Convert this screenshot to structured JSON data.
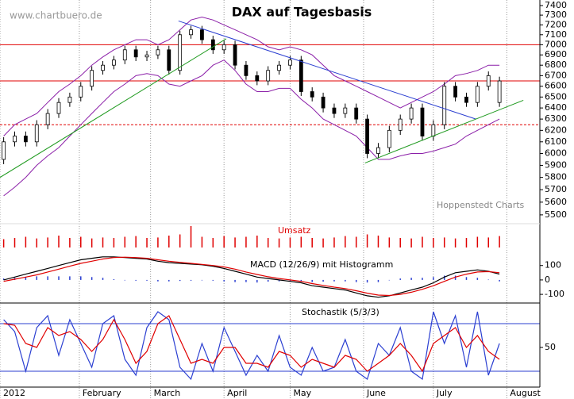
{
  "chart_data": [
    {
      "type": "candlestick",
      "title": "DAX auf Tagesbasis",
      "source": "www.chartbuero.de",
      "credit": "Hoppenstedt Charts",
      "x": [
        1,
        4,
        7,
        10,
        13,
        16,
        19,
        22,
        25,
        28,
        31,
        34,
        37,
        40,
        43,
        46,
        49,
        52,
        55,
        58,
        61,
        64,
        67,
        70,
        73,
        76,
        79,
        82,
        85,
        88,
        91,
        94,
        97,
        100,
        103,
        106,
        109,
        112,
        115,
        118,
        121,
        124,
        127,
        130,
        133,
        136
      ],
      "open": [
        5950,
        6100,
        6150,
        6100,
        6250,
        6350,
        6450,
        6500,
        6600,
        6750,
        6800,
        6850,
        6950,
        6880,
        6900,
        6950,
        6750,
        7100,
        7150,
        7050,
        6950,
        7000,
        6800,
        6700,
        6650,
        6750,
        6800,
        6850,
        6550,
        6500,
        6400,
        6350,
        6400,
        6300,
        6000,
        6050,
        6200,
        6300,
        6400,
        6150,
        6250,
        6600,
        6500,
        6450,
        6600,
        6450
      ],
      "high": [
        6140,
        6190,
        6190,
        6290,
        6390,
        6490,
        6540,
        6640,
        6790,
        6840,
        6890,
        6990,
        6990,
        6940,
        6990,
        6990,
        7140,
        7190,
        7190,
        7090,
        7040,
        7040,
        6840,
        6740,
        6790,
        6840,
        6890,
        6890,
        6590,
        6540,
        6440,
        6440,
        6440,
        6340,
        6090,
        6240,
        6340,
        6440,
        6440,
        6290,
        6640,
        6640,
        6540,
        6640,
        6740,
        6690
      ],
      "low": [
        5910,
        6060,
        6060,
        6060,
        6210,
        6310,
        6410,
        6460,
        6560,
        6710,
        6760,
        6810,
        6840,
        6840,
        6860,
        6710,
        6710,
        7060,
        7010,
        6910,
        6910,
        6760,
        6660,
        6610,
        6610,
        6710,
        6760,
        6510,
        6460,
        6360,
        6310,
        6310,
        6260,
        5960,
        5960,
        6010,
        6160,
        6260,
        6110,
        6110,
        6210,
        6460,
        6410,
        6410,
        6560,
        6410
      ],
      "close": [
        6100,
        6150,
        6100,
        6250,
        6350,
        6450,
        6500,
        6600,
        6750,
        6800,
        6850,
        6950,
        6880,
        6900,
        6950,
        6750,
        7100,
        7150,
        7050,
        6950,
        7000,
        6800,
        6700,
        6650,
        6750,
        6800,
        6850,
        6550,
        6500,
        6400,
        6350,
        6400,
        6300,
        6000,
        6050,
        6200,
        6300,
        6400,
        6150,
        6250,
        6600,
        6500,
        6450,
        6600,
        6700,
        6650
      ],
      "up_color": "#ffffff",
      "down_color": "#000000",
      "bands": [
        {
          "color": "#8b1fa8",
          "values": [
            6150,
            6250,
            6300,
            6350,
            6450,
            6550,
            6620,
            6700,
            6800,
            6880,
            6950,
            7000,
            7050,
            7050,
            7000,
            7050,
            7150,
            7250,
            7280,
            7250,
            7200,
            7150,
            7100,
            7050,
            6980,
            6950,
            6980,
            6950,
            6900,
            6800,
            6700,
            6650,
            6600,
            6550,
            6500,
            6450,
            6400,
            6450,
            6500,
            6550,
            6620,
            6700,
            6720,
            6750,
            6800,
            6800
          ]
        },
        {
          "color": "#8b1fa8",
          "values": [
            5650,
            5720,
            5800,
            5900,
            5980,
            6050,
            6150,
            6250,
            6350,
            6450,
            6550,
            6620,
            6700,
            6720,
            6700,
            6620,
            6600,
            6650,
            6700,
            6800,
            6850,
            6750,
            6620,
            6550,
            6550,
            6580,
            6580,
            6480,
            6400,
            6300,
            6250,
            6200,
            6150,
            6050,
            5950,
            5950,
            5980,
            6000,
            6000,
            6020,
            6050,
            6080,
            6150,
            6200,
            6250,
            6300
          ]
        }
      ],
      "hlines": [
        {
          "value": 7000,
          "color": "#e00000"
        },
        {
          "value": 6650,
          "color": "#e00000"
        },
        {
          "value": 6250,
          "color": "#e00000",
          "dashed": true
        }
      ],
      "trendlines": [
        {
          "color": "#2b3fd1",
          "x": [
            48.6,
            129.6
          ],
          "y": [
            7240,
            6300
          ]
        },
        {
          "color": "#1f9a1f",
          "x": [
            0,
            61.6
          ],
          "y": [
            5800,
            7060
          ]
        },
        {
          "color": "#1f9a1f",
          "x": [
            99.4,
            142.5
          ],
          "y": [
            5920,
            6470
          ]
        }
      ],
      "log_scale": true,
      "xlim": [
        0,
        147
      ],
      "ylim": [
        5450,
        7450
      ],
      "yticks": [
        5500,
        5600,
        5700,
        5800,
        5900,
        6000,
        6100,
        6200,
        6300,
        6400,
        6500,
        6600,
        6700,
        6800,
        6900,
        7000,
        7100,
        7200,
        7300,
        7400
      ]
    },
    {
      "type": "bar",
      "title": "Umsatz",
      "color": "#e00000",
      "x": [
        1,
        4,
        7,
        10,
        13,
        16,
        19,
        22,
        25,
        28,
        31,
        34,
        37,
        40,
        43,
        46,
        49,
        52,
        55,
        58,
        61,
        64,
        67,
        70,
        73,
        76,
        79,
        82,
        85,
        88,
        91,
        94,
        97,
        100,
        103,
        106,
        109,
        112,
        115,
        118,
        121,
        124,
        127,
        130,
        133,
        136
      ],
      "values": [
        35,
        40,
        45,
        38,
        42,
        50,
        40,
        45,
        38,
        42,
        40,
        45,
        48,
        40,
        42,
        50,
        55,
        90,
        45,
        40,
        48,
        42,
        45,
        50,
        40,
        38,
        42,
        45,
        40,
        38,
        42,
        48,
        45,
        55,
        50,
        42,
        40,
        38,
        45,
        40,
        42,
        38,
        40,
        45,
        42,
        48
      ],
      "xlim": [
        0,
        147
      ],
      "ylim": [
        0,
        100
      ]
    },
    {
      "type": "macd",
      "title": "MACD (12/26/9) mit Histogramm",
      "x": [
        1,
        4,
        7,
        10,
        13,
        16,
        19,
        22,
        25,
        28,
        31,
        34,
        37,
        40,
        43,
        46,
        49,
        52,
        55,
        58,
        61,
        64,
        67,
        70,
        73,
        76,
        79,
        82,
        85,
        88,
        91,
        94,
        97,
        100,
        103,
        106,
        109,
        112,
        115,
        118,
        121,
        124,
        127,
        130,
        133,
        136
      ],
      "series": [
        {
          "color": "#000000",
          "values": [
            0,
            20,
            40,
            60,
            80,
            100,
            120,
            140,
            150,
            160,
            160,
            155,
            150,
            145,
            130,
            120,
            115,
            110,
            105,
            95,
            80,
            60,
            40,
            20,
            10,
            0,
            -10,
            -20,
            -40,
            -50,
            -60,
            -70,
            -90,
            -110,
            -120,
            -110,
            -90,
            -70,
            -50,
            -20,
            20,
            50,
            60,
            70,
            60,
            40
          ]
        },
        {
          "color": "#e00000",
          "values": [
            -10,
            5,
            20,
            35,
            55,
            75,
            95,
            115,
            130,
            145,
            155,
            158,
            155,
            150,
            140,
            130,
            122,
            115,
            108,
            100,
            90,
            75,
            55,
            38,
            22,
            10,
            0,
            -10,
            -25,
            -38,
            -50,
            -60,
            -75,
            -92,
            -105,
            -108,
            -100,
            -85,
            -65,
            -40,
            -10,
            20,
            40,
            55,
            58,
            50
          ]
        }
      ],
      "histogram": {
        "color": "#2b3fd1",
        "values": [
          10,
          15,
          20,
          25,
          25,
          25,
          25,
          25,
          20,
          15,
          5,
          -3,
          -5,
          -5,
          -10,
          -10,
          -7,
          -5,
          -3,
          -5,
          -10,
          -15,
          -15,
          -18,
          -12,
          -10,
          -10,
          -10,
          -15,
          -12,
          -10,
          -10,
          -15,
          -18,
          -15,
          -2,
          10,
          15,
          15,
          20,
          30,
          30,
          20,
          15,
          2,
          -10
        ]
      },
      "xlim": [
        0,
        147
      ],
      "ylim": [
        -160,
        170
      ],
      "yticks": [
        -100,
        0,
        100
      ]
    },
    {
      "type": "line",
      "title": "Stochastik (5/3/3)",
      "x": [
        1,
        4,
        7,
        10,
        13,
        16,
        19,
        22,
        25,
        28,
        31,
        34,
        37,
        40,
        43,
        46,
        49,
        52,
        55,
        58,
        61,
        64,
        67,
        70,
        73,
        76,
        79,
        82,
        85,
        88,
        91,
        94,
        97,
        100,
        103,
        106,
        109,
        112,
        115,
        118,
        121,
        124,
        127,
        130,
        133,
        136
      ],
      "series": [
        {
          "color": "#2b3fd1",
          "values": [
            85,
            70,
            20,
            75,
            90,
            40,
            85,
            55,
            25,
            80,
            90,
            35,
            15,
            75,
            95,
            85,
            25,
            10,
            55,
            20,
            75,
            45,
            15,
            40,
            20,
            65,
            25,
            15,
            50,
            20,
            25,
            60,
            20,
            10,
            55,
            40,
            75,
            20,
            10,
            95,
            55,
            90,
            25,
            95,
            15,
            55
          ]
        },
        {
          "color": "#e00000",
          "values": [
            80,
            78,
            55,
            50,
            75,
            65,
            70,
            60,
            45,
            60,
            85,
            60,
            30,
            45,
            80,
            90,
            60,
            30,
            35,
            30,
            50,
            50,
            30,
            30,
            25,
            45,
            40,
            25,
            35,
            30,
            25,
            40,
            35,
            20,
            30,
            40,
            55,
            40,
            20,
            55,
            65,
            75,
            50,
            65,
            45,
            35
          ]
        }
      ],
      "hlines": [
        {
          "value": 80,
          "color": "#2b3fd1"
        },
        {
          "value": 20,
          "color": "#2b3fd1"
        }
      ],
      "xlim": [
        0,
        147
      ],
      "ylim": [
        0,
        106
      ],
      "yticks": [
        50
      ],
      "xticks": [
        {
          "value": 0,
          "label": "2012"
        },
        {
          "value": 21.6,
          "label": "February"
        },
        {
          "value": 41,
          "label": "March"
        },
        {
          "value": 61,
          "label": "April"
        },
        {
          "value": 79,
          "label": "May"
        },
        {
          "value": 99,
          "label": "June"
        },
        {
          "value": 118,
          "label": "July"
        },
        {
          "value": 138,
          "label": "August"
        }
      ]
    }
  ]
}
